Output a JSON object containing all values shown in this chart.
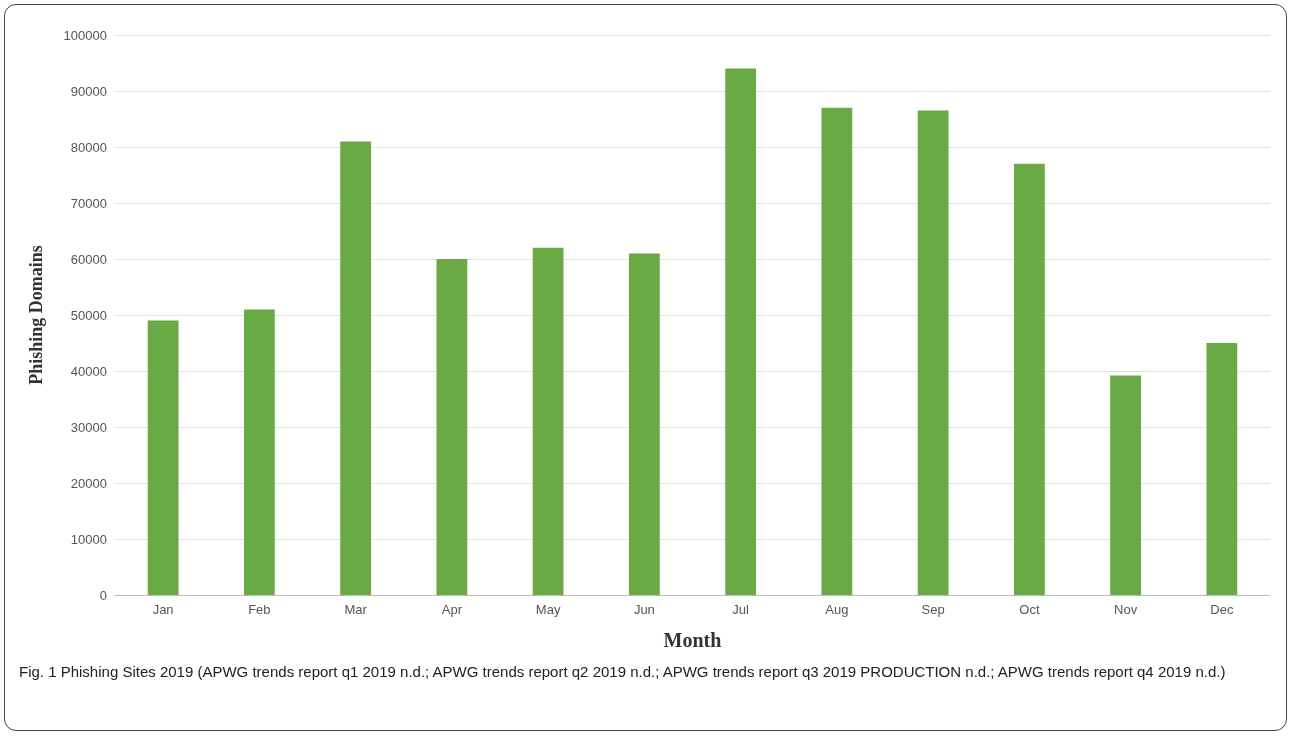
{
  "chart_data": {
    "type": "bar",
    "categories": [
      "Jan",
      "Feb",
      "Mar",
      "Apr",
      "May",
      "Jun",
      "Jul",
      "Aug",
      "Sep",
      "Oct",
      "Nov",
      "Dec"
    ],
    "values": [
      49000,
      51000,
      81000,
      60000,
      62000,
      61000,
      94000,
      87000,
      86500,
      77000,
      39200,
      45000
    ],
    "color": "#6aaa45",
    "xlabel": "Month",
    "ylabel": "Phishing Domains",
    "ylim": [
      0,
      100000
    ],
    "yticks": [
      0,
      10000,
      20000,
      30000,
      40000,
      50000,
      60000,
      70000,
      80000,
      90000,
      100000
    ],
    "grid": "y",
    "annotations": [
      "Fig. 1 Phishing Sites 2019 (APWG trends report q1 2019 n.d.; APWG trends report q2 2019 n.d.; APWG trends report q3 2019 PRODUCTION n.d.; APWG trends report q4 2019 n.d.)"
    ]
  }
}
